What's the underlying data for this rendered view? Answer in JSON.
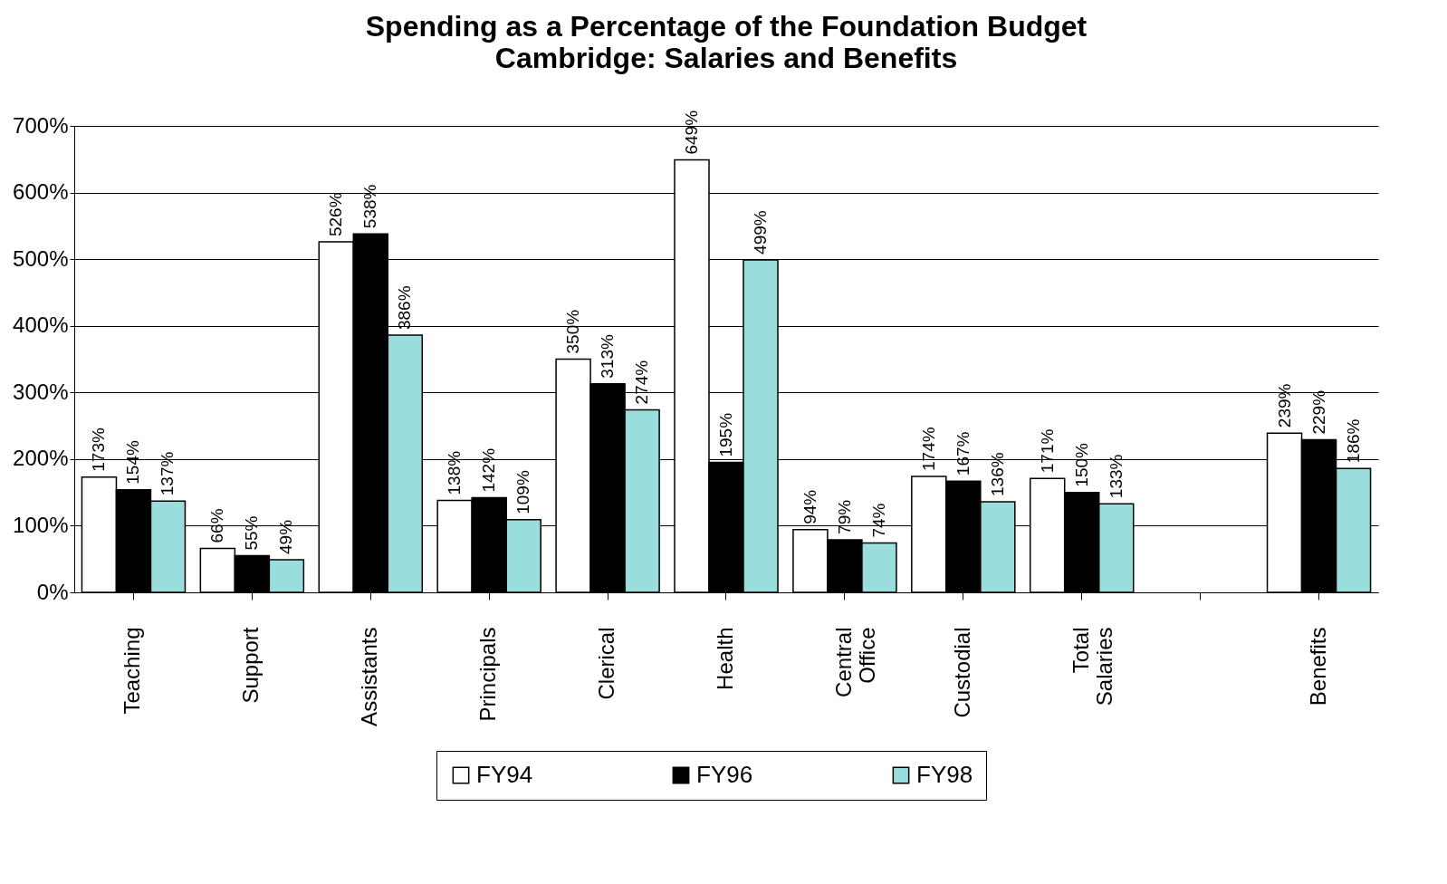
{
  "chart_data": {
    "type": "bar",
    "title": "Spending as a Percentage of the Foundation Budget",
    "subtitle": "Cambridge:  Salaries and Benefits",
    "categories": [
      "Teaching",
      "Support",
      "Assistants",
      "Principals",
      "Clerical",
      "Health",
      "Central Office",
      "Custodial",
      "Total Salaries",
      null,
      "Benefits"
    ],
    "series": [
      {
        "name": "FY94",
        "color": "#ffffff",
        "values": [
          173,
          66,
          526,
          138,
          350,
          649,
          94,
          174,
          171,
          null,
          239
        ],
        "value_labels": [
          "173%",
          "66%",
          "526%",
          "138%",
          "350%",
          "649%",
          "94%",
          "174%",
          "171%",
          null,
          "239%"
        ]
      },
      {
        "name": "FY96",
        "color": "#000000",
        "values": [
          154,
          55,
          538,
          142,
          313,
          195,
          79,
          167,
          150,
          null,
          229
        ],
        "value_labels": [
          "154%",
          "55%",
          "538%",
          "142%",
          "313%",
          "195%",
          "79%",
          "167%",
          "150%",
          null,
          "229%"
        ]
      },
      {
        "name": "FY98",
        "color": "#99dddd",
        "values": [
          137,
          49,
          386,
          109,
          274,
          499,
          74,
          136,
          133,
          null,
          186
        ],
        "value_labels": [
          "137%",
          "49%",
          "386%",
          "109%",
          "274%",
          "499%",
          "74%",
          "136%",
          "133%",
          null,
          "186%"
        ]
      }
    ],
    "ylim": [
      0,
      700
    ],
    "yticks": [
      {
        "value": 0,
        "label": "0%"
      },
      {
        "value": 100,
        "label": "100%"
      },
      {
        "value": 200,
        "label": "200%"
      },
      {
        "value": 300,
        "label": "300%"
      },
      {
        "value": 400,
        "label": "400%"
      },
      {
        "value": 500,
        "label": "500%"
      },
      {
        "value": 600,
        "label": "600%"
      },
      {
        "value": 700,
        "label": "700%"
      }
    ],
    "grid": "y",
    "legend": "bottom"
  }
}
